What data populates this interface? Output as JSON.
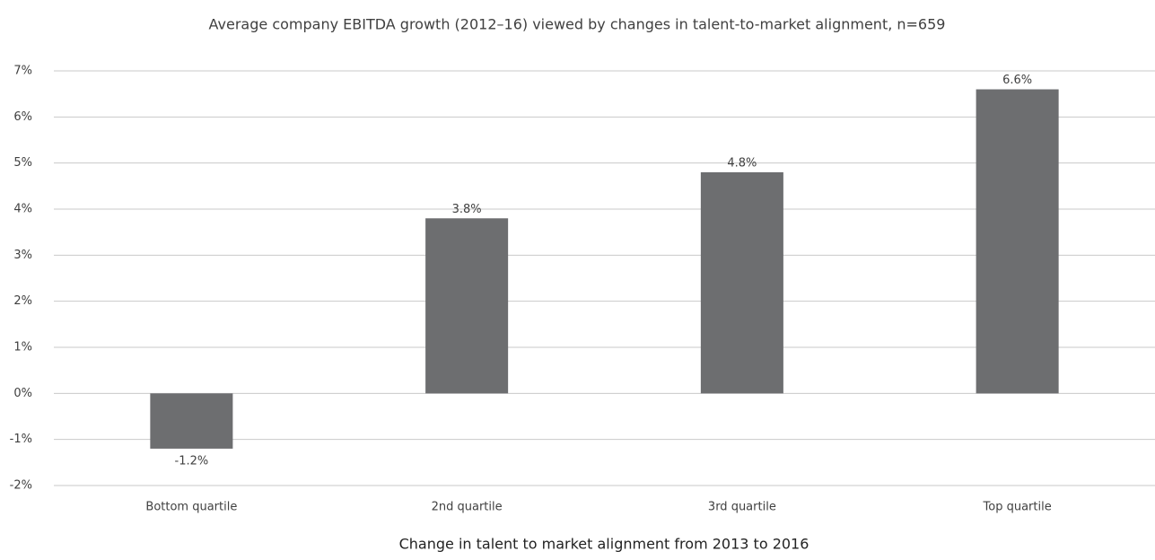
{
  "chart_data": {
    "type": "bar",
    "title": "Average company EBITDA growth (2012–16) viewed by changes in talent-to-market alignment, n=659",
    "x_label": "Change in talent to market alignment from 2013 to 2016",
    "categories": [
      "Bottom quartile",
      "2nd quartile",
      "3rd quartile",
      "Top quartile"
    ],
    "values": [
      -1.2,
      3.8,
      4.8,
      6.6
    ],
    "value_labels": [
      "-1.2%",
      "3.8%",
      "4.8%",
      "6.6%"
    ],
    "color": "#6d6e70",
    "ylim": [
      -2,
      7
    ],
    "yticks": [
      {
        "value": -2,
        "label": "-2%"
      },
      {
        "value": -1,
        "label": "-1%"
      },
      {
        "value": 0,
        "label": "0%"
      },
      {
        "value": 1,
        "label": "1%"
      },
      {
        "value": 2,
        "label": "2%"
      },
      {
        "value": 3,
        "label": "3%"
      },
      {
        "value": 4,
        "label": "4%"
      },
      {
        "value": 5,
        "label": "5%"
      },
      {
        "value": 6,
        "label": "6%"
      },
      {
        "value": 7,
        "label": "7%"
      }
    ],
    "grid": true
  }
}
